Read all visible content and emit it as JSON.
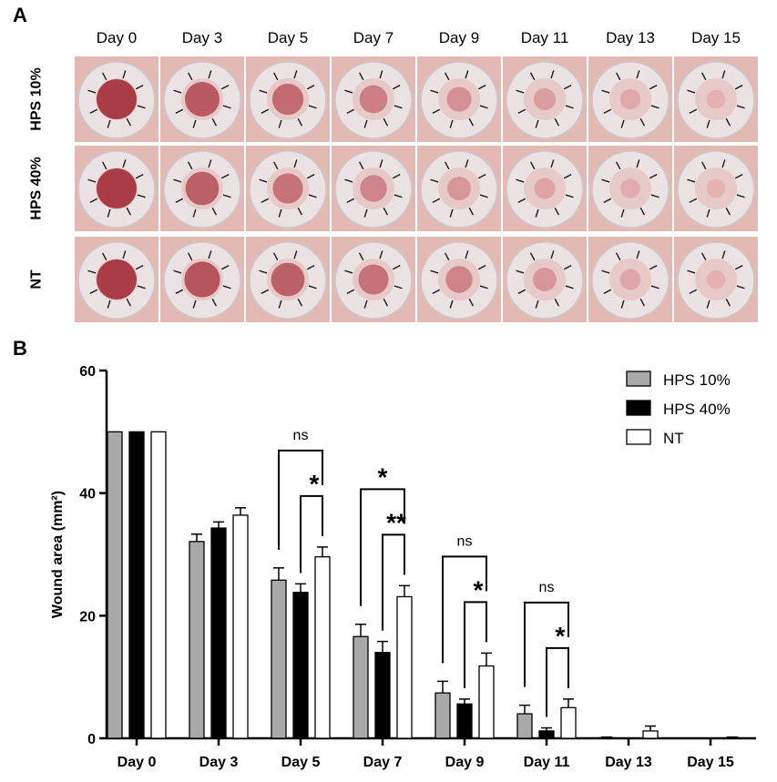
{
  "panel_a": {
    "label": "A",
    "days": [
      "Day 0",
      "Day 3",
      "Day 5",
      "Day 7",
      "Day 9",
      "Day 11",
      "Day 13",
      "Day 15"
    ],
    "rows": [
      {
        "label": "HPS 10%",
        "healing": [
          0.0,
          0.25,
          0.4,
          0.55,
          0.7,
          0.82,
          0.9,
          0.97
        ]
      },
      {
        "label": "HPS 40%",
        "healing": [
          0.0,
          0.3,
          0.45,
          0.6,
          0.75,
          0.87,
          0.93,
          0.98
        ]
      },
      {
        "label": "NT",
        "healing": [
          0.0,
          0.2,
          0.3,
          0.45,
          0.6,
          0.75,
          0.88,
          0.97
        ]
      }
    ]
  },
  "panel_b": {
    "label": "B",
    "chart_data": {
      "type": "bar",
      "title": "",
      "xlabel": "",
      "ylabel": "Wound area (mm²)",
      "ylim": [
        0,
        60
      ],
      "yticks": [
        0,
        20,
        40,
        60
      ],
      "categories": [
        "Day 0",
        "Day 3",
        "Day 5",
        "Day 7",
        "Day 9",
        "Day 11",
        "Day 13",
        "Day 15"
      ],
      "series": [
        {
          "name": "HPS 10%",
          "color": "#a9a9a9",
          "values": [
            50,
            32.1,
            25.8,
            16.6,
            7.4,
            4.0,
            0.1,
            0.0
          ],
          "errors": [
            0,
            1.2,
            2.0,
            2.0,
            1.9,
            1.4,
            0.1,
            0.0
          ]
        },
        {
          "name": "HPS 40%",
          "color": "#000000",
          "values": [
            50,
            34.3,
            23.8,
            14.0,
            5.6,
            1.2,
            0.0,
            0.0
          ],
          "errors": [
            0,
            1.0,
            1.4,
            1.8,
            0.8,
            0.5,
            0.0,
            0.0
          ]
        },
        {
          "name": "NT",
          "color": "#ffffff",
          "values": [
            50,
            36.4,
            29.6,
            23.1,
            11.8,
            5.0,
            1.2,
            0.1
          ],
          "errors": [
            0,
            1.2,
            1.6,
            1.8,
            2.1,
            1.4,
            0.8,
            0.1
          ]
        }
      ],
      "legend_position": "top-right",
      "significance": [
        {
          "category": "Day 5",
          "outer": "ns",
          "inner": "*"
        },
        {
          "category": "Day 7",
          "outer": "*",
          "inner": "**"
        },
        {
          "category": "Day 9",
          "outer": "ns",
          "inner": "*"
        },
        {
          "category": "Day 11",
          "outer": "ns",
          "inner": "*"
        }
      ]
    }
  }
}
